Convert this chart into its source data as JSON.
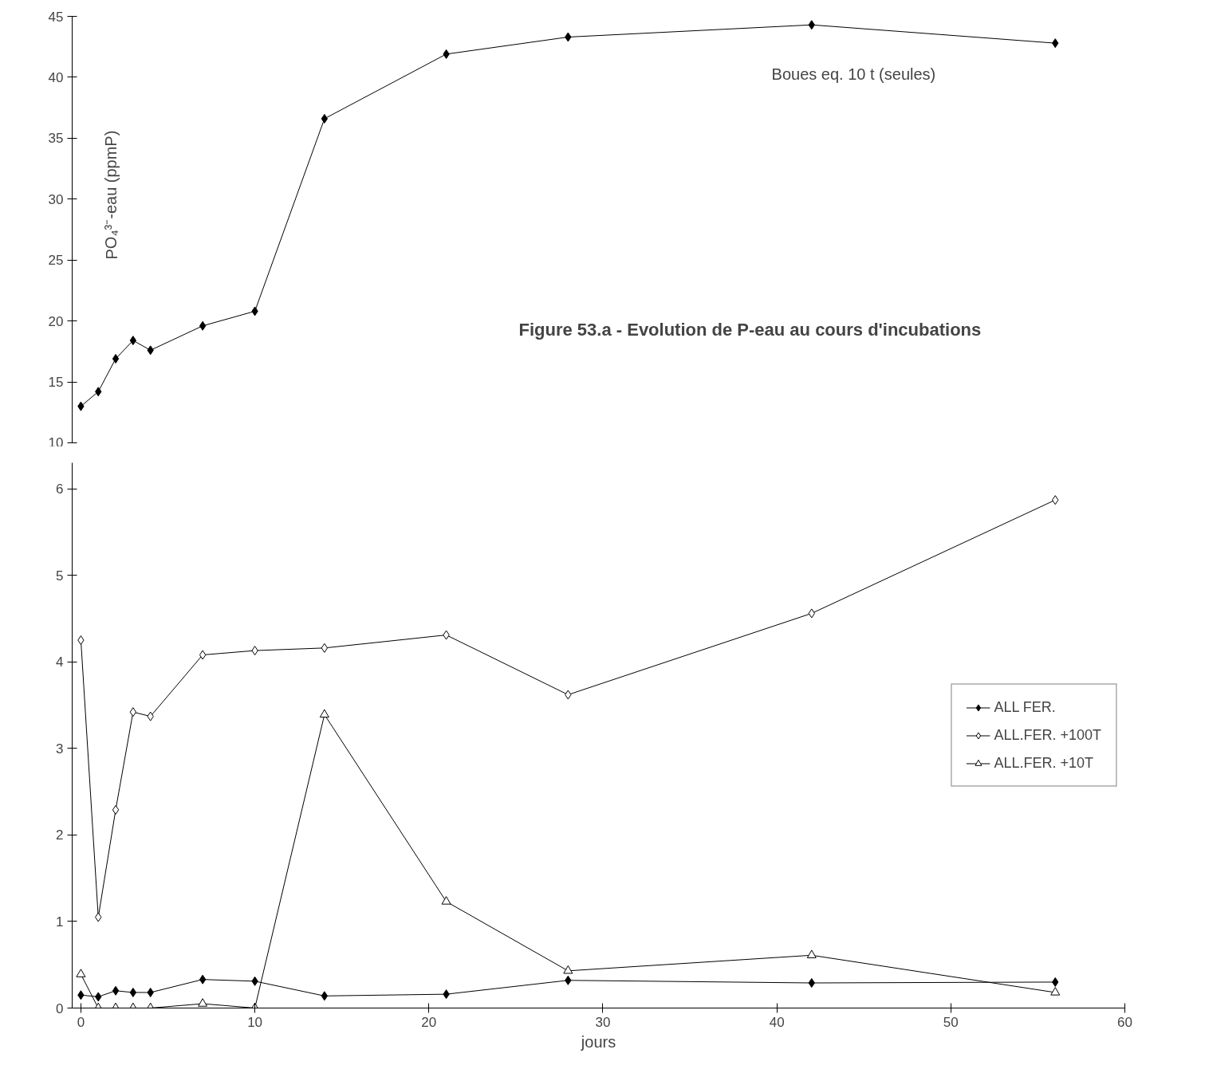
{
  "chart_data": [
    {
      "type": "line",
      "ylabel": "PO₄³⁻-eau (ppmP)",
      "annotations": [
        "Figure 53.a - Evolution de P-eau au cours d'incubations"
      ],
      "x": [
        0,
        1,
        2,
        3,
        4,
        7,
        10,
        14,
        21,
        28,
        42,
        56
      ],
      "xlim": [
        -0.5,
        60
      ],
      "ylim": [
        10,
        45
      ],
      "yticks": [
        10,
        15,
        20,
        25,
        30,
        35,
        40,
        45
      ],
      "tick_labels": "y",
      "grid": false,
      "legend": false,
      "series": [
        {
          "name": "Boues eq. 10 t (seules)",
          "color": "#000000",
          "marker": "diamond",
          "values": [
            13.0,
            14.2,
            16.9,
            18.4,
            17.6,
            19.6,
            20.8,
            36.6,
            41.9,
            43.3,
            44.3,
            42.8
          ]
        }
      ]
    },
    {
      "type": "line",
      "xlabel": "jours",
      "x": [
        0,
        1,
        2,
        3,
        4,
        7,
        10,
        14,
        21,
        28,
        42,
        56
      ],
      "xlim": [
        -0.5,
        60
      ],
      "xticks": [
        0,
        10,
        20,
        30,
        40,
        50,
        60
      ],
      "ylim": [
        0,
        6.3
      ],
      "yticks": [
        0,
        1,
        2,
        3,
        4,
        5,
        6
      ],
      "grid": false,
      "legend": "right",
      "series": [
        {
          "name": "ALL FER.",
          "color": "#000000",
          "marker": "diamond",
          "values": [
            0.15,
            0.13,
            0.2,
            0.18,
            0.18,
            0.33,
            0.31,
            0.14,
            0.16,
            0.32,
            0.29,
            0.3
          ]
        },
        {
          "name": "ALL.FER. +100T",
          "color": "#000000",
          "marker": "diamond",
          "values": [
            4.25,
            1.05,
            2.29,
            3.42,
            3.37,
            4.08,
            4.13,
            4.16,
            4.31,
            3.62,
            4.56,
            5.87
          ]
        },
        {
          "name": "ALL.FER. +10T",
          "color": "#000000",
          "marker": "triangle",
          "values": [
            0.39,
            0,
            0,
            0,
            0,
            0.05,
            0,
            3.39,
            1.23,
            0.43,
            0.61,
            0.18
          ]
        }
      ]
    }
  ]
}
